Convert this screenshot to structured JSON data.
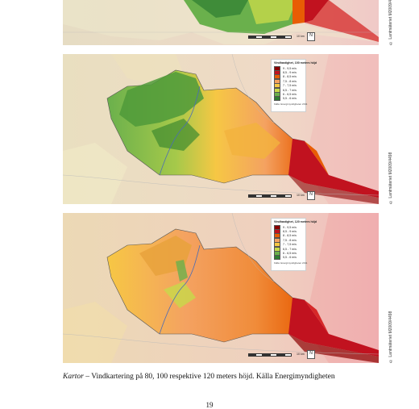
{
  "maps": [
    {
      "id": "map-80",
      "legend_title": "",
      "theme": "green-dominant"
    },
    {
      "id": "map-100",
      "legend_title": "Vindhastighet, 100 meters höjd",
      "theme": "mixed",
      "legend_entries": [
        "9 - 9,5 m/s",
        "8,5 - 9 m/s",
        "8 - 8,5 m/s",
        "7,5 - 8 m/s",
        "7 - 7,5 m/s",
        "6,5 - 7 m/s",
        "6 - 6,5 m/s",
        "5,5 - 6 m/s"
      ],
      "legend_source": "Källa: Energimyndigheten 2011"
    },
    {
      "id": "map-120",
      "legend_title": "Vindhastighet, 120 meters höjd",
      "theme": "orange-dominant",
      "legend_entries": [
        "9 - 9,5 m/s",
        "8,5 - 9 m/s",
        "8 - 8,5 m/s",
        "7,5 - 8 m/s",
        "7 - 7,5 m/s",
        "6,5 - 7 m/s",
        "6 - 6,5 m/s",
        "5,5 - 6 m/s"
      ],
      "legend_source": "Källa: Energimyndigheten 2011"
    }
  ],
  "legend_colors": [
    "#8b0000",
    "#c1121f",
    "#e85d04",
    "#f4a261",
    "#f6c744",
    "#c7d94a",
    "#6ab04c",
    "#2e7d32"
  ],
  "scale_label": "10 km",
  "north_label": "N",
  "copyright": "© Lantmäteriet M2009/4498",
  "caption_italic": "Kartor",
  "caption_rest": " – Vindkartering på 80, 100 respektive 120 meters höjd. Källa Energimyndigheten",
  "page_number": "19"
}
